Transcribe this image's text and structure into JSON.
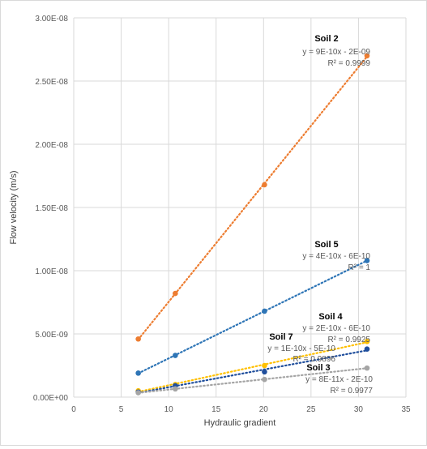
{
  "chart_data": {
    "type": "scatter",
    "title": "",
    "xlabel": "Hydraulic gradient",
    "ylabel": "Flow velocity (m/s)",
    "xlim": [
      0,
      35
    ],
    "ylim": [
      0,
      3e-08
    ],
    "x_ticks": [
      0,
      5,
      10,
      15,
      20,
      25,
      30,
      35
    ],
    "x_tick_labels": [
      "0",
      "5",
      "10",
      "15",
      "20",
      "25",
      "30",
      "35"
    ],
    "y_ticks": [
      0,
      5e-09,
      1e-08,
      1.5e-08,
      2e-08,
      2.5e-08,
      3e-08
    ],
    "y_tick_labels": [
      "0.00E+00",
      "5.00E-09",
      "1.00E-08",
      "1.50E-08",
      "2.00E-08",
      "2.50E-08",
      "3.00E-08"
    ],
    "grid": true,
    "legend": "none",
    "trendline": "linear, dotted",
    "series": [
      {
        "name": "Soil 2",
        "color": "#ED7D31",
        "x": [
          6.8,
          10.7,
          20.1,
          30.9
        ],
        "y": [
          4.6e-09,
          8.2e-09,
          1.68e-08,
          2.7e-08
        ],
        "equation": "y = 9E-10x - 2E-09",
        "r2": "R² = 0.9999"
      },
      {
        "name": "Soil 5",
        "color": "#2E75B6",
        "x": [
          6.8,
          10.7,
          20.1,
          30.9
        ],
        "y": [
          1.9e-09,
          3.3e-09,
          6.8e-09,
          1.08e-08
        ],
        "equation": "y = 4E-10x - 6E-10",
        "r2": "R² = 1"
      },
      {
        "name": "Soil 4",
        "color": "#FFC000",
        "x": [
          6.8,
          10.7,
          20.1,
          30.9
        ],
        "y": [
          5e-10,
          1e-09,
          2.5e-09,
          4.4e-09
        ],
        "equation": "y = 2E-10x - 6E-10",
        "r2": "R² = 0.9925"
      },
      {
        "name": "Soil 7",
        "color": "#1F4E9C",
        "x": [
          6.8,
          10.7,
          20.1,
          30.9
        ],
        "y": [
          4e-10,
          9e-10,
          2e-09,
          3.8e-09
        ],
        "equation": "y = 1E-10x - 5E-10",
        "r2": "R² = 0.9896"
      },
      {
        "name": "Soil 3",
        "color": "#A5A5A5",
        "x": [
          6.8,
          10.7,
          20.1,
          30.9
        ],
        "y": [
          3.5e-10,
          6.5e-10,
          1.4e-09,
          2.3e-09
        ],
        "equation": "y = 8E-11x - 2E-10",
        "r2": "R² = 0.9977"
      }
    ]
  }
}
